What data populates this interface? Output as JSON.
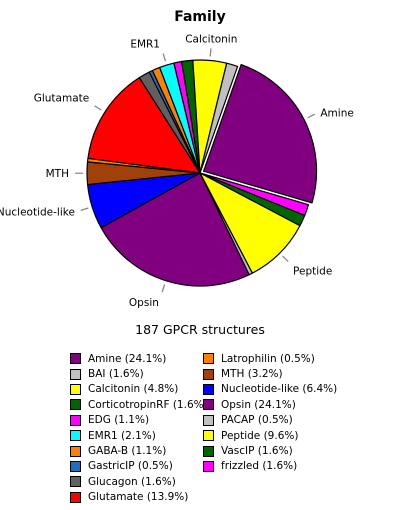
{
  "chart_data": {
    "type": "pie",
    "title": "Family",
    "subtitle": "187 GPCR structures",
    "slices": [
      {
        "label": "Amine",
        "value": 24.1,
        "color": "#800080",
        "legend": "Amine (24.1%)",
        "outer_label": "Amine"
      },
      {
        "label": "frizzled",
        "value": 1.6,
        "color": "#ff00ff",
        "legend": "frizzled (1.6%)",
        "outer_label": ""
      },
      {
        "label": "VascIP",
        "value": 1.6,
        "color": "#006400",
        "legend": "VascIP (1.6%)",
        "outer_label": ""
      },
      {
        "label": "Peptide",
        "value": 9.6,
        "color": "#ffff00",
        "legend": "Peptide (9.6%)",
        "outer_label": "Peptide"
      },
      {
        "label": "PACAP",
        "value": 0.5,
        "color": "#c0c0c0",
        "legend": "PACAP (0.5%)",
        "outer_label": ""
      },
      {
        "label": "Opsin",
        "value": 24.1,
        "color": "#800080",
        "legend": "Opsin (24.1%)",
        "outer_label": "Opsin"
      },
      {
        "label": "Nucleotide-like",
        "value": 6.4,
        "color": "#0000ff",
        "legend": "Nucleotide-like (6.4%)",
        "outer_label": "Nucleotide-like"
      },
      {
        "label": "MTH",
        "value": 3.2,
        "color": "#a0400a",
        "legend": "MTH (3.2%)",
        "outer_label": "MTH"
      },
      {
        "label": "Latrophilin",
        "value": 0.5,
        "color": "#ff8000",
        "legend": "Latrophilin (0.5%)",
        "outer_label": ""
      },
      {
        "label": "Glutamate",
        "value": 13.9,
        "color": "#ff0000",
        "legend": "Glutamate (13.9%)",
        "outer_label": "Glutamate"
      },
      {
        "label": "Glucagon",
        "value": 1.6,
        "color": "#606060",
        "legend": "Glucagon (1.6%)",
        "outer_label": ""
      },
      {
        "label": "GastricIP",
        "value": 0.5,
        "color": "#1e6fc0",
        "legend": "GastricIP (0.5%)",
        "outer_label": ""
      },
      {
        "label": "GABA-B",
        "value": 1.1,
        "color": "#ff8000",
        "legend": "GABA-B (1.1%)",
        "outer_label": ""
      },
      {
        "label": "EMR1",
        "value": 2.1,
        "color": "#00ffff",
        "legend": "EMR1 (2.1%)",
        "outer_label": "EMR1"
      },
      {
        "label": "EDG",
        "value": 1.1,
        "color": "#ff00ff",
        "legend": "EDG (1.1%)",
        "outer_label": ""
      },
      {
        "label": "CorticotropinRF",
        "value": 1.6,
        "color": "#006400",
        "legend": "CorticotropinRF (1.6%)",
        "outer_label": ""
      },
      {
        "label": "Calcitonin",
        "value": 4.8,
        "color": "#ffff00",
        "legend": "Calcitonin (4.8%)",
        "outer_label": "Calcitonin"
      },
      {
        "label": "BAI",
        "value": 1.6,
        "color": "#c0c0c0",
        "legend": "BAI (1.6%)",
        "outer_label": ""
      }
    ],
    "legend_columns": [
      [
        "Amine",
        "BAI",
        "Calcitonin",
        "CorticotropinRF",
        "EDG",
        "EMR1",
        "GABA-B",
        "GastricIP",
        "Glucagon",
        "Glutamate"
      ],
      [
        "Latrophilin",
        "MTH",
        "Nucleotide-like",
        "Opsin",
        "PACAP",
        "Peptide",
        "VascIP",
        "frizzled"
      ]
    ]
  }
}
